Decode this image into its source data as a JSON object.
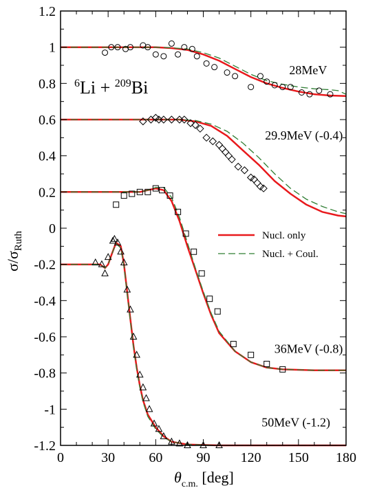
{
  "chart_data": {
    "type": "scatter",
    "title": "⁶Li + ²⁰⁹Bi",
    "title_parts": {
      "sup1": "6",
      "base1": "Li + ",
      "sup2": "209",
      "base2": "Bi"
    },
    "xlabel": "θc.m. [deg]",
    "xlabel_parts": {
      "theta": "θ",
      "sub": "c.m.",
      "rest": " [deg]"
    },
    "ylabel": "σ/σRuth",
    "ylabel_parts": {
      "main": "σ/σ",
      "sub": "Ruth"
    },
    "xlim": [
      0,
      180
    ],
    "ylim": [
      -1.2,
      1.2
    ],
    "x_ticks": [
      0,
      30,
      60,
      90,
      120,
      150,
      180
    ],
    "x_tick_labels": [
      "0",
      "30",
      "60",
      "90",
      "120",
      "150",
      "180"
    ],
    "y_ticks": [
      1.2,
      1,
      0.8,
      0.6,
      0.4,
      0.2,
      0,
      -0.2,
      -0.4,
      -0.6,
      -0.8,
      -1,
      -1.2
    ],
    "y_tick_labels": [
      "1.2",
      "1",
      "0.8",
      "0.6",
      "0.4",
      "0.2",
      "0",
      "-0.2",
      "-0.4",
      "-0.6",
      "-0.8",
      "-1",
      "-1.2"
    ],
    "grid": false,
    "legend_position": "center-right",
    "legend": [
      {
        "label": "Nucl. only",
        "color": "#e8191c",
        "style": "solid"
      },
      {
        "label": "Nucl. + Coul.",
        "color": "#2e7d32",
        "style": "dashed"
      }
    ],
    "series": [
      {
        "label": "28MeV",
        "marker": "circle",
        "points": [
          [
            28,
            0.97
          ],
          [
            32,
            1.0
          ],
          [
            36,
            1.0
          ],
          [
            41,
            0.99
          ],
          [
            44,
            1.0
          ],
          [
            52,
            1.01
          ],
          [
            55,
            1.0
          ],
          [
            60,
            0.96
          ],
          [
            65,
            0.95
          ],
          [
            70,
            1.02
          ],
          [
            74,
            0.96
          ],
          [
            78,
            1.0
          ],
          [
            83,
            0.99
          ],
          [
            86,
            0.95
          ],
          [
            92,
            0.91
          ],
          [
            97,
            0.89
          ],
          [
            105,
            0.86
          ],
          [
            110,
            0.84
          ],
          [
            120,
            0.78
          ],
          [
            126,
            0.84
          ],
          [
            130,
            0.81
          ],
          [
            135,
            0.79
          ],
          [
            140,
            0.78
          ],
          [
            145,
            0.78
          ],
          [
            152,
            0.75
          ],
          [
            157,
            0.74
          ],
          [
            163,
            0.76
          ],
          [
            170,
            0.74
          ]
        ],
        "curve_nucl": [
          [
            0,
            1.0
          ],
          [
            40,
            1.0
          ],
          [
            50,
            1.0
          ],
          [
            60,
            1.0
          ],
          [
            70,
            0.995
          ],
          [
            80,
            0.985
          ],
          [
            90,
            0.96
          ],
          [
            100,
            0.925
          ],
          [
            110,
            0.88
          ],
          [
            120,
            0.835
          ],
          [
            130,
            0.8
          ],
          [
            140,
            0.775
          ],
          [
            150,
            0.755
          ],
          [
            160,
            0.74
          ],
          [
            170,
            0.733
          ],
          [
            180,
            0.73
          ]
        ],
        "curve_coul": [
          [
            0,
            1.0
          ],
          [
            40,
            1.0
          ],
          [
            50,
            1.0
          ],
          [
            60,
            1.0
          ],
          [
            70,
            0.997
          ],
          [
            80,
            0.99
          ],
          [
            90,
            0.97
          ],
          [
            100,
            0.94
          ],
          [
            110,
            0.895
          ],
          [
            120,
            0.85
          ],
          [
            130,
            0.815
          ],
          [
            140,
            0.795
          ],
          [
            150,
            0.78
          ],
          [
            160,
            0.77
          ],
          [
            170,
            0.765
          ],
          [
            175,
            0.76
          ],
          [
            180,
            0.74
          ]
        ]
      },
      {
        "label": "29.9MeV (-0.4)",
        "marker": "diamond",
        "points": [
          [
            52,
            0.59
          ],
          [
            57,
            0.6
          ],
          [
            60,
            0.61
          ],
          [
            62,
            0.6
          ],
          [
            65,
            0.6
          ],
          [
            70,
            0.6
          ],
          [
            75,
            0.6
          ],
          [
            78,
            0.6
          ],
          [
            82,
            0.58
          ],
          [
            85,
            0.57
          ],
          [
            88,
            0.55
          ],
          [
            92,
            0.5
          ],
          [
            96,
            0.48
          ],
          [
            100,
            0.46
          ],
          [
            102,
            0.44
          ],
          [
            104,
            0.42
          ],
          [
            106,
            0.4
          ],
          [
            108,
            0.38
          ],
          [
            112,
            0.34
          ],
          [
            116,
            0.32
          ],
          [
            120,
            0.28
          ],
          [
            122,
            0.27
          ],
          [
            124,
            0.25
          ],
          [
            126,
            0.23
          ],
          [
            128,
            0.22
          ]
        ],
        "curve_nucl": [
          [
            0,
            0.6
          ],
          [
            40,
            0.6
          ],
          [
            60,
            0.6
          ],
          [
            75,
            0.6
          ],
          [
            85,
            0.59
          ],
          [
            95,
            0.565
          ],
          [
            105,
            0.51
          ],
          [
            115,
            0.43
          ],
          [
            125,
            0.35
          ],
          [
            135,
            0.26
          ],
          [
            145,
            0.19
          ],
          [
            155,
            0.13
          ],
          [
            165,
            0.09
          ],
          [
            175,
            0.07
          ],
          [
            180,
            0.065
          ]
        ],
        "curve_coul": [
          [
            0,
            0.6
          ],
          [
            40,
            0.6
          ],
          [
            60,
            0.6
          ],
          [
            75,
            0.6
          ],
          [
            85,
            0.595
          ],
          [
            95,
            0.575
          ],
          [
            105,
            0.535
          ],
          [
            115,
            0.47
          ],
          [
            125,
            0.39
          ],
          [
            135,
            0.3
          ],
          [
            145,
            0.22
          ],
          [
            155,
            0.16
          ],
          [
            165,
            0.12
          ],
          [
            175,
            0.09
          ],
          [
            180,
            0.08
          ]
        ]
      },
      {
        "label": "36MeV (-0.8)",
        "marker": "square",
        "points": [
          [
            35,
            0.13
          ],
          [
            40,
            0.18
          ],
          [
            45,
            0.19
          ],
          [
            50,
            0.2
          ],
          [
            55,
            0.2
          ],
          [
            60,
            0.22
          ],
          [
            64,
            0.21
          ],
          [
            69,
            0.18
          ],
          [
            74,
            0.09
          ],
          [
            79,
            -0.03
          ],
          [
            84,
            -0.13
          ],
          [
            89,
            -0.25
          ],
          [
            94,
            -0.39
          ],
          [
            99,
            -0.46
          ],
          [
            109,
            -0.64
          ],
          [
            120,
            -0.7
          ],
          [
            130,
            -0.75
          ],
          [
            140,
            -0.78
          ]
        ],
        "curve_nucl": [
          [
            0,
            0.2
          ],
          [
            30,
            0.2
          ],
          [
            40,
            0.2
          ],
          [
            50,
            0.2
          ],
          [
            55,
            0.21
          ],
          [
            60,
            0.22
          ],
          [
            65,
            0.21
          ],
          [
            70,
            0.15
          ],
          [
            75,
            0.04
          ],
          [
            80,
            -0.1
          ],
          [
            85,
            -0.23
          ],
          [
            90,
            -0.36
          ],
          [
            95,
            -0.48
          ],
          [
            100,
            -0.58
          ],
          [
            110,
            -0.68
          ],
          [
            120,
            -0.74
          ],
          [
            130,
            -0.77
          ],
          [
            140,
            -0.78
          ],
          [
            160,
            -0.785
          ],
          [
            180,
            -0.785
          ]
        ],
        "curve_coul": [
          [
            0,
            0.2
          ],
          [
            30,
            0.2
          ],
          [
            40,
            0.2
          ],
          [
            50,
            0.2
          ],
          [
            55,
            0.21
          ],
          [
            60,
            0.225
          ],
          [
            65,
            0.225
          ],
          [
            70,
            0.17
          ],
          [
            75,
            0.06
          ],
          [
            80,
            -0.08
          ],
          [
            85,
            -0.22
          ],
          [
            90,
            -0.35
          ],
          [
            95,
            -0.47
          ],
          [
            100,
            -0.57
          ],
          [
            110,
            -0.68
          ],
          [
            120,
            -0.74
          ],
          [
            130,
            -0.77
          ],
          [
            140,
            -0.78
          ],
          [
            160,
            -0.785
          ],
          [
            180,
            -0.785
          ]
        ]
      },
      {
        "label": "50MeV (-1.2)",
        "marker": "triangle",
        "points": [
          [
            22,
            -0.19
          ],
          [
            26,
            -0.2
          ],
          [
            28,
            -0.25
          ],
          [
            30,
            -0.16
          ],
          [
            33,
            -0.07
          ],
          [
            34,
            -0.06
          ],
          [
            36,
            -0.08
          ],
          [
            38,
            -0.13
          ],
          [
            40,
            -0.19
          ],
          [
            42,
            -0.34
          ],
          [
            44,
            -0.45
          ],
          [
            46,
            -0.6
          ],
          [
            48,
            -0.7
          ],
          [
            50,
            -0.81
          ],
          [
            52,
            -0.88
          ],
          [
            54,
            -0.94
          ],
          [
            56,
            -1.0
          ],
          [
            59,
            -1.08
          ],
          [
            62,
            -1.11
          ],
          [
            65,
            -1.15
          ],
          [
            70,
            -1.18
          ],
          [
            75,
            -1.19
          ],
          [
            80,
            -1.2
          ],
          [
            90,
            -1.2
          ],
          [
            100,
            -1.2
          ]
        ],
        "curve_nucl": [
          [
            0,
            -0.2
          ],
          [
            20,
            -0.2
          ],
          [
            25,
            -0.2
          ],
          [
            28,
            -0.22
          ],
          [
            30,
            -0.2
          ],
          [
            32,
            -0.15
          ],
          [
            35,
            -0.08
          ],
          [
            38,
            -0.1
          ],
          [
            40,
            -0.2
          ],
          [
            42,
            -0.35
          ],
          [
            44,
            -0.5
          ],
          [
            46,
            -0.65
          ],
          [
            48,
            -0.77
          ],
          [
            50,
            -0.87
          ],
          [
            52,
            -0.95
          ],
          [
            55,
            -1.03
          ],
          [
            60,
            -1.1
          ],
          [
            65,
            -1.15
          ],
          [
            70,
            -1.18
          ],
          [
            80,
            -1.195
          ],
          [
            100,
            -1.2
          ],
          [
            180,
            -1.2
          ]
        ],
        "curve_coul": [
          [
            0,
            -0.2
          ],
          [
            20,
            -0.2
          ],
          [
            25,
            -0.2
          ],
          [
            28,
            -0.22
          ],
          [
            30,
            -0.2
          ],
          [
            32,
            -0.15
          ],
          [
            35,
            -0.085
          ],
          [
            38,
            -0.11
          ],
          [
            40,
            -0.21
          ],
          [
            42,
            -0.36
          ],
          [
            44,
            -0.51
          ],
          [
            46,
            -0.66
          ],
          [
            48,
            -0.78
          ],
          [
            50,
            -0.88
          ],
          [
            52,
            -0.96
          ],
          [
            55,
            -1.04
          ],
          [
            60,
            -1.11
          ],
          [
            65,
            -1.155
          ],
          [
            70,
            -1.18
          ],
          [
            80,
            -1.195
          ],
          [
            100,
            -1.2
          ],
          [
            180,
            -1.2
          ]
        ]
      }
    ]
  }
}
